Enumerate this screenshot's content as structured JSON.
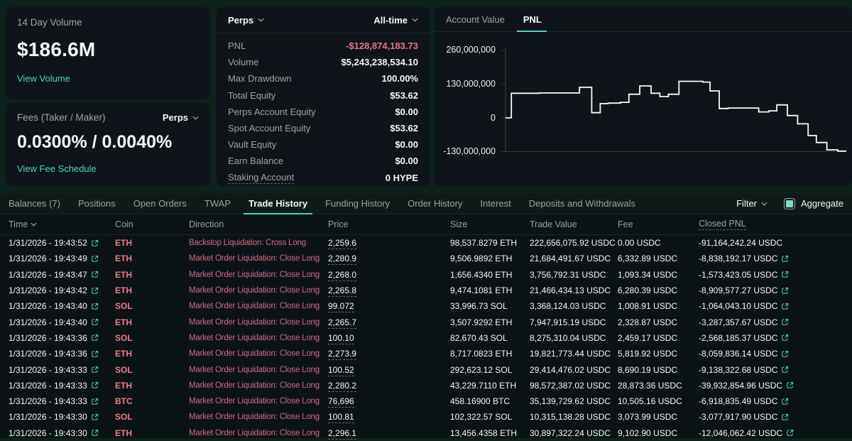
{
  "theme": {
    "accent_teal": "#50d2c1",
    "negative_pink": "#ed7088",
    "page_bg": "#0d221b",
    "card_bg": "#0e141a"
  },
  "volume_card": {
    "title": "14 Day Volume",
    "value": "$186.6M",
    "link": "View Volume"
  },
  "fees_card": {
    "title": "Fees (Taker / Maker)",
    "selector": "Perps",
    "value": "0.0300% / 0.0040%",
    "link": "View Fee Schedule"
  },
  "stats_card": {
    "left_selector": "Perps",
    "right_selector": "All-time",
    "rows": [
      {
        "label": "PNL",
        "value": "-$128,874,183.73",
        "negative": true
      },
      {
        "label": "Volume",
        "value": "$5,243,238,534.10"
      },
      {
        "label": "Max Drawdown",
        "value": "100.00%"
      },
      {
        "label": "Total Equity",
        "value": "$53.62"
      },
      {
        "label": "Perps Account Equity",
        "value": "$0.00"
      },
      {
        "label": "Spot Account Equity",
        "value": "$53.62"
      },
      {
        "label": "Vault Equity",
        "value": "$0.00"
      },
      {
        "label": "Earn Balance",
        "value": "$0.00"
      },
      {
        "label": "Staking Account",
        "value": "0 HYPE",
        "dashed": true
      }
    ]
  },
  "chart_card": {
    "tabs": [
      {
        "label": "Account Value",
        "active": false
      },
      {
        "label": "PNL",
        "active": true
      }
    ]
  },
  "chart_data": {
    "type": "line",
    "title": "PNL",
    "step_mode": "after",
    "line_color": "#fafcfb",
    "x_encoding": "fraction of plot width",
    "y_encoding": "millions USD",
    "yticks": [
      {
        "label": "260,000,000",
        "value": 260
      },
      {
        "label": "130,000,000",
        "value": 130
      },
      {
        "label": "0",
        "value": 0
      },
      {
        "label": "-130,000,000",
        "value": -130
      }
    ],
    "ylim_millions": [
      -150,
      280
    ],
    "points": [
      [
        0.0,
        0
      ],
      [
        0.017,
        95
      ],
      [
        0.1,
        96
      ],
      [
        0.217,
        118
      ],
      [
        0.253,
        20
      ],
      [
        0.278,
        55
      ],
      [
        0.301,
        57
      ],
      [
        0.337,
        60
      ],
      [
        0.362,
        91
      ],
      [
        0.394,
        123
      ],
      [
        0.427,
        95
      ],
      [
        0.453,
        82
      ],
      [
        0.478,
        91
      ],
      [
        0.509,
        141
      ],
      [
        0.579,
        138
      ],
      [
        0.6,
        104
      ],
      [
        0.627,
        36
      ],
      [
        0.653,
        38
      ],
      [
        0.743,
        23
      ],
      [
        0.773,
        27
      ],
      [
        0.796,
        50
      ],
      [
        0.827,
        9
      ],
      [
        0.857,
        -23
      ],
      [
        0.888,
        -68
      ],
      [
        0.912,
        -95
      ],
      [
        0.943,
        -123
      ],
      [
        0.975,
        -128
      ],
      [
        1.0,
        -128
      ]
    ]
  },
  "bottom": {
    "tabs": [
      {
        "label": "Balances (7)",
        "active": false
      },
      {
        "label": "Positions",
        "active": false
      },
      {
        "label": "Open Orders",
        "active": false
      },
      {
        "label": "TWAP",
        "active": false
      },
      {
        "label": "Trade History",
        "active": true
      },
      {
        "label": "Funding History",
        "active": false
      },
      {
        "label": "Order History",
        "active": false
      },
      {
        "label": "Interest",
        "active": false
      },
      {
        "label": "Deposits and Withdrawals",
        "active": false
      }
    ],
    "filter_label": "Filter",
    "aggregate_label": "Aggregate",
    "aggregate_checked": true,
    "columns": [
      {
        "label": "Time",
        "sort": true
      },
      {
        "label": "Coin"
      },
      {
        "label": "Direction"
      },
      {
        "label": "Price"
      },
      {
        "label": "Size"
      },
      {
        "label": "Trade Value"
      },
      {
        "label": "Fee"
      },
      {
        "label": "Closed PNL",
        "dashed": true
      }
    ],
    "rows": [
      {
        "time": "1/31/2026 - 19:43:52",
        "coin": "ETH",
        "direction": "Backstop Liquidation: Cross Long",
        "price": "2,259.6",
        "size": "98,537.8279 ETH",
        "trade_value": "222,656,075.92 USDC",
        "fee": "0.00 USDC",
        "closed_pnl": "-91,164,242.24 USDC",
        "pnl_link": false
      },
      {
        "time": "1/31/2026 - 19:43:49",
        "coin": "ETH",
        "direction": "Market Order Liquidation: Close Long",
        "price": "2,280.9",
        "size": "9,506.9892 ETH",
        "trade_value": "21,684,491.67 USDC",
        "fee": "6,332.89 USDC",
        "closed_pnl": "-8,838,192.17 USDC",
        "pnl_link": true
      },
      {
        "time": "1/31/2026 - 19:43:47",
        "coin": "ETH",
        "direction": "Market Order Liquidation: Close Long",
        "price": "2,268.0",
        "size": "1,656.4340 ETH",
        "trade_value": "3,756,792.31 USDC",
        "fee": "1,093.34 USDC",
        "closed_pnl": "-1,573,423.05 USDC",
        "pnl_link": true
      },
      {
        "time": "1/31/2026 - 19:43:42",
        "coin": "ETH",
        "direction": "Market Order Liquidation: Close Long",
        "price": "2,265.8",
        "size": "9,474.1081 ETH",
        "trade_value": "21,466,434.13 USDC",
        "fee": "6,280.39 USDC",
        "closed_pnl": "-8,909,577.27 USDC",
        "pnl_link": true
      },
      {
        "time": "1/31/2026 - 19:43:40",
        "coin": "SOL",
        "direction": "Market Order Liquidation: Close Long",
        "price": "99.072",
        "size": "33,996.73 SOL",
        "trade_value": "3,368,124.03 USDC",
        "fee": "1,008.91 USDC",
        "closed_pnl": "-1,064,043.10 USDC",
        "pnl_link": true
      },
      {
        "time": "1/31/2026 - 19:43:40",
        "coin": "ETH",
        "direction": "Market Order Liquidation: Close Long",
        "price": "2,265.7",
        "size": "3,507.9292 ETH",
        "trade_value": "7,947,915.19 USDC",
        "fee": "2,328.87 USDC",
        "closed_pnl": "-3,287,357.67 USDC",
        "pnl_link": true
      },
      {
        "time": "1/31/2026 - 19:43:36",
        "coin": "SOL",
        "direction": "Market Order Liquidation: Close Long",
        "price": "100.10",
        "size": "82,670.43 SOL",
        "trade_value": "8,275,310.04 USDC",
        "fee": "2,459.17 USDC",
        "closed_pnl": "-2,568,185.37 USDC",
        "pnl_link": true
      },
      {
        "time": "1/31/2026 - 19:43:36",
        "coin": "ETH",
        "direction": "Market Order Liquidation: Close Long",
        "price": "2,273.9",
        "size": "8,717.0823 ETH",
        "trade_value": "19,821,773.44 USDC",
        "fee": "5,819.92 USDC",
        "closed_pnl": "-8,059,836.14 USDC",
        "pnl_link": true
      },
      {
        "time": "1/31/2026 - 19:43:33",
        "coin": "SOL",
        "direction": "Market Order Liquidation: Close Long",
        "price": "100.52",
        "size": "292,623.12 SOL",
        "trade_value": "29,414,476.02 USDC",
        "fee": "8,690.19 USDC",
        "closed_pnl": "-9,138,322.68 USDC",
        "pnl_link": true
      },
      {
        "time": "1/31/2026 - 19:43:33",
        "coin": "ETH",
        "direction": "Market Order Liquidation: Close Long",
        "price": "2,280.2",
        "size": "43,229.7110 ETH",
        "trade_value": "98,572,387.02 USDC",
        "fee": "28,873.36 USDC",
        "closed_pnl": "-39,932,854.96 USDC",
        "pnl_link": true
      },
      {
        "time": "1/31/2026 - 19:43:33",
        "coin": "BTC",
        "direction": "Market Order Liquidation: Close Long",
        "price": "76,696",
        "size": "458.16900 BTC",
        "trade_value": "35,139,729.62 USDC",
        "fee": "10,505.16 USDC",
        "closed_pnl": "-6,918,835.49 USDC",
        "pnl_link": true
      },
      {
        "time": "1/31/2026 - 19:43:30",
        "coin": "SOL",
        "direction": "Market Order Liquidation: Close Long",
        "price": "100.81",
        "size": "102,322.57 SOL",
        "trade_value": "10,315,138.28 USDC",
        "fee": "3,073.99 USDC",
        "closed_pnl": "-3,077,917.90 USDC",
        "pnl_link": true
      },
      {
        "time": "1/31/2026 - 19:43:30",
        "coin": "ETH",
        "direction": "Market Order Liquidation: Close Long",
        "price": "2,296.1",
        "size": "13,456.4358 ETH",
        "trade_value": "30,897,322.24 USDC",
        "fee": "9,102.90 USDC",
        "closed_pnl": "-12,046,062.42 USDC",
        "pnl_link": true
      }
    ]
  }
}
